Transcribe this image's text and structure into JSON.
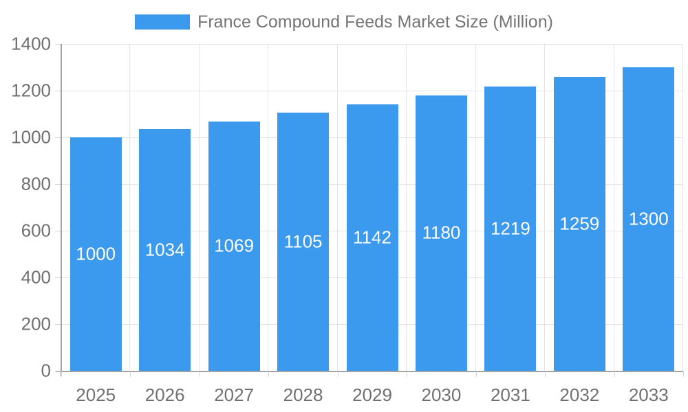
{
  "legend": {
    "label": "France Compound Feeds Market Size (Million)",
    "swatch_color": "#3b9aed"
  },
  "chart_data": {
    "type": "bar",
    "title": "France Compound Feeds Market Size (Million)",
    "categories": [
      "2025",
      "2026",
      "2027",
      "2028",
      "2029",
      "2030",
      "2031",
      "2032",
      "2033"
    ],
    "values": [
      1000,
      1034,
      1069,
      1105,
      1142,
      1180,
      1219,
      1259,
      1300
    ],
    "xlabel": "",
    "ylabel": "",
    "ylim": [
      0,
      1400
    ],
    "yticks": [
      0,
      200,
      400,
      600,
      800,
      1000,
      1200,
      1400
    ],
    "grid": true,
    "legend_position": "top",
    "bar_color": "#3b9aed",
    "bar_label_color": "#ffffff",
    "bar_labels_inside": true
  },
  "colors": {
    "background": "#ffffff",
    "grid": "#e4e4e4",
    "axis_border": "#a3a3a3",
    "tick_mark": "#d4d4d4",
    "tick_text": "#707070",
    "legend_text": "#757575"
  }
}
